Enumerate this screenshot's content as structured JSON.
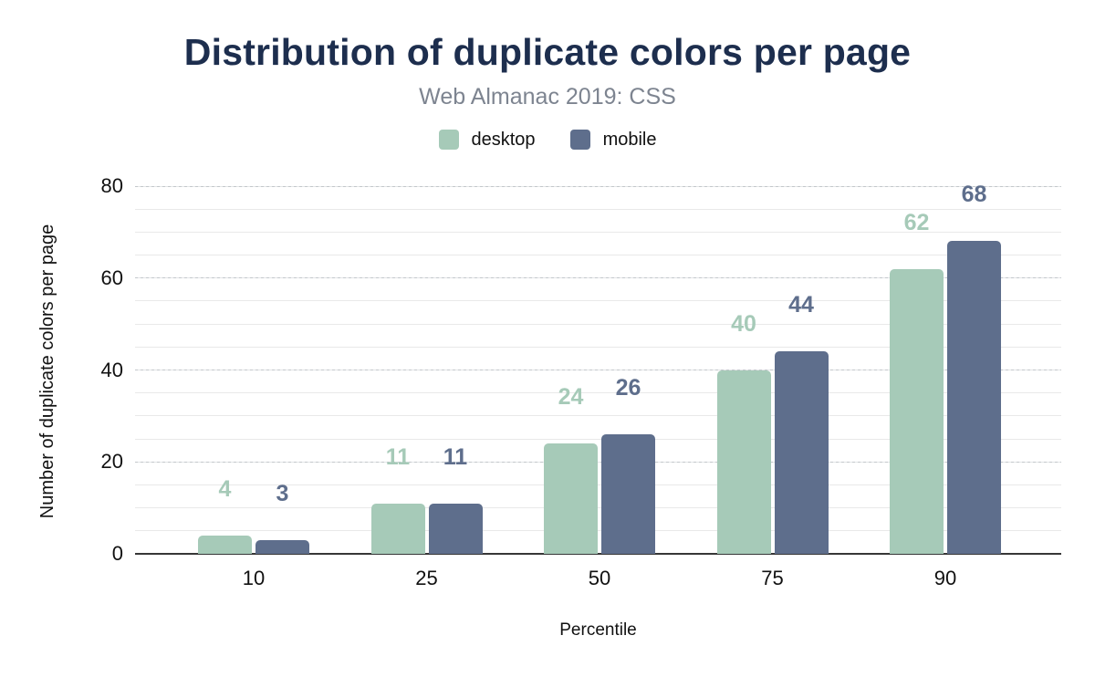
{
  "chart_data": {
    "type": "bar",
    "title": "Distribution of duplicate colors per page",
    "subtitle": "Web Almanac 2019: CSS",
    "xlabel": "Percentile",
    "ylabel": "Number of duplicate colors per page",
    "categories": [
      "10",
      "25",
      "50",
      "75",
      "90"
    ],
    "series": [
      {
        "name": "desktop",
        "color": "#a6cab8",
        "values": [
          4,
          11,
          24,
          40,
          62
        ]
      },
      {
        "name": "mobile",
        "color": "#5e6e8c",
        "values": [
          3,
          11,
          26,
          44,
          68
        ]
      }
    ],
    "ylim": [
      0,
      80
    ],
    "yticks": [
      0,
      20,
      40,
      60,
      80
    ],
    "y_minor_step": 5,
    "y_major_step": 20,
    "grid": "horizontal minor+major",
    "legend_position": "top",
    "value_labels": true
  },
  "style": {
    "title_color": "#1d2e4e",
    "subtitle_color": "#7d8490",
    "axis_text_color": "#111111",
    "baseline_color": "#373737",
    "background": "#ffffff"
  }
}
